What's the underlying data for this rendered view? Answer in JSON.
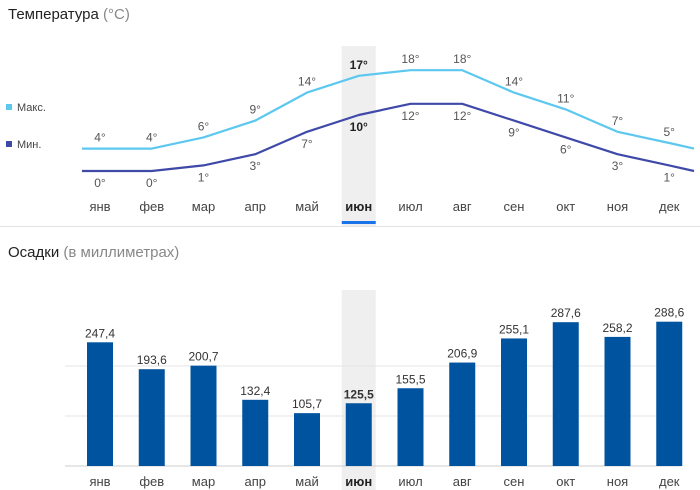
{
  "temperature": {
    "title": "Температура",
    "unit": "(°C)",
    "legend_max": "Макс.",
    "legend_min": "Мин."
  },
  "precipitation": {
    "title": "Осадки",
    "unit": "(в миллиметрах)"
  },
  "colors": {
    "max_line": "#5cc8f0",
    "min_line": "#3f4aa8",
    "bar": "#00539f",
    "highlight_band": "#efefef",
    "highlight_underline": "#1a73e8"
  },
  "chart_data": [
    {
      "type": "line",
      "title": "Температура (°C)",
      "categories": [
        "янв",
        "фев",
        "мар",
        "апр",
        "май",
        "июн",
        "июл",
        "авг",
        "сен",
        "окт",
        "ноя",
        "дек"
      ],
      "highlight": "июн",
      "series": [
        {
          "name": "Макс.",
          "values": [
            4,
            4,
            6,
            9,
            14,
            17,
            18,
            18,
            14,
            11,
            7,
            5
          ],
          "labels": [
            "4°",
            "4°",
            "6°",
            "9°",
            "14°",
            "17°",
            "18°",
            "18°",
            "14°",
            "11°",
            "7°",
            "5°"
          ]
        },
        {
          "name": "Мин.",
          "values": [
            0,
            0,
            1,
            3,
            7,
            10,
            12,
            12,
            9,
            6,
            3,
            1
          ],
          "labels": [
            "0°",
            "0°",
            "1°",
            "3°",
            "7°",
            "10°",
            "12°",
            "12°",
            "9°",
            "6°",
            "3°",
            "1°"
          ]
        }
      ]
    },
    {
      "type": "bar",
      "title": "Осадки (в миллиметрах)",
      "categories": [
        "янв",
        "фев",
        "мар",
        "апр",
        "май",
        "июн",
        "июл",
        "авг",
        "сен",
        "окт",
        "ноя",
        "дек"
      ],
      "highlight": "июн",
      "values": [
        247.4,
        193.6,
        200.7,
        132.4,
        105.7,
        125.5,
        155.5,
        206.9,
        255.1,
        287.6,
        258.2,
        288.6
      ],
      "labels": [
        "247,4",
        "193,6",
        "200,7",
        "132,4",
        "105,7",
        "125,5",
        "155,5",
        "206,9",
        "255,1",
        "287,6",
        "258,2",
        "288,6"
      ],
      "ylim": [
        0,
        300
      ],
      "grid": true
    }
  ]
}
